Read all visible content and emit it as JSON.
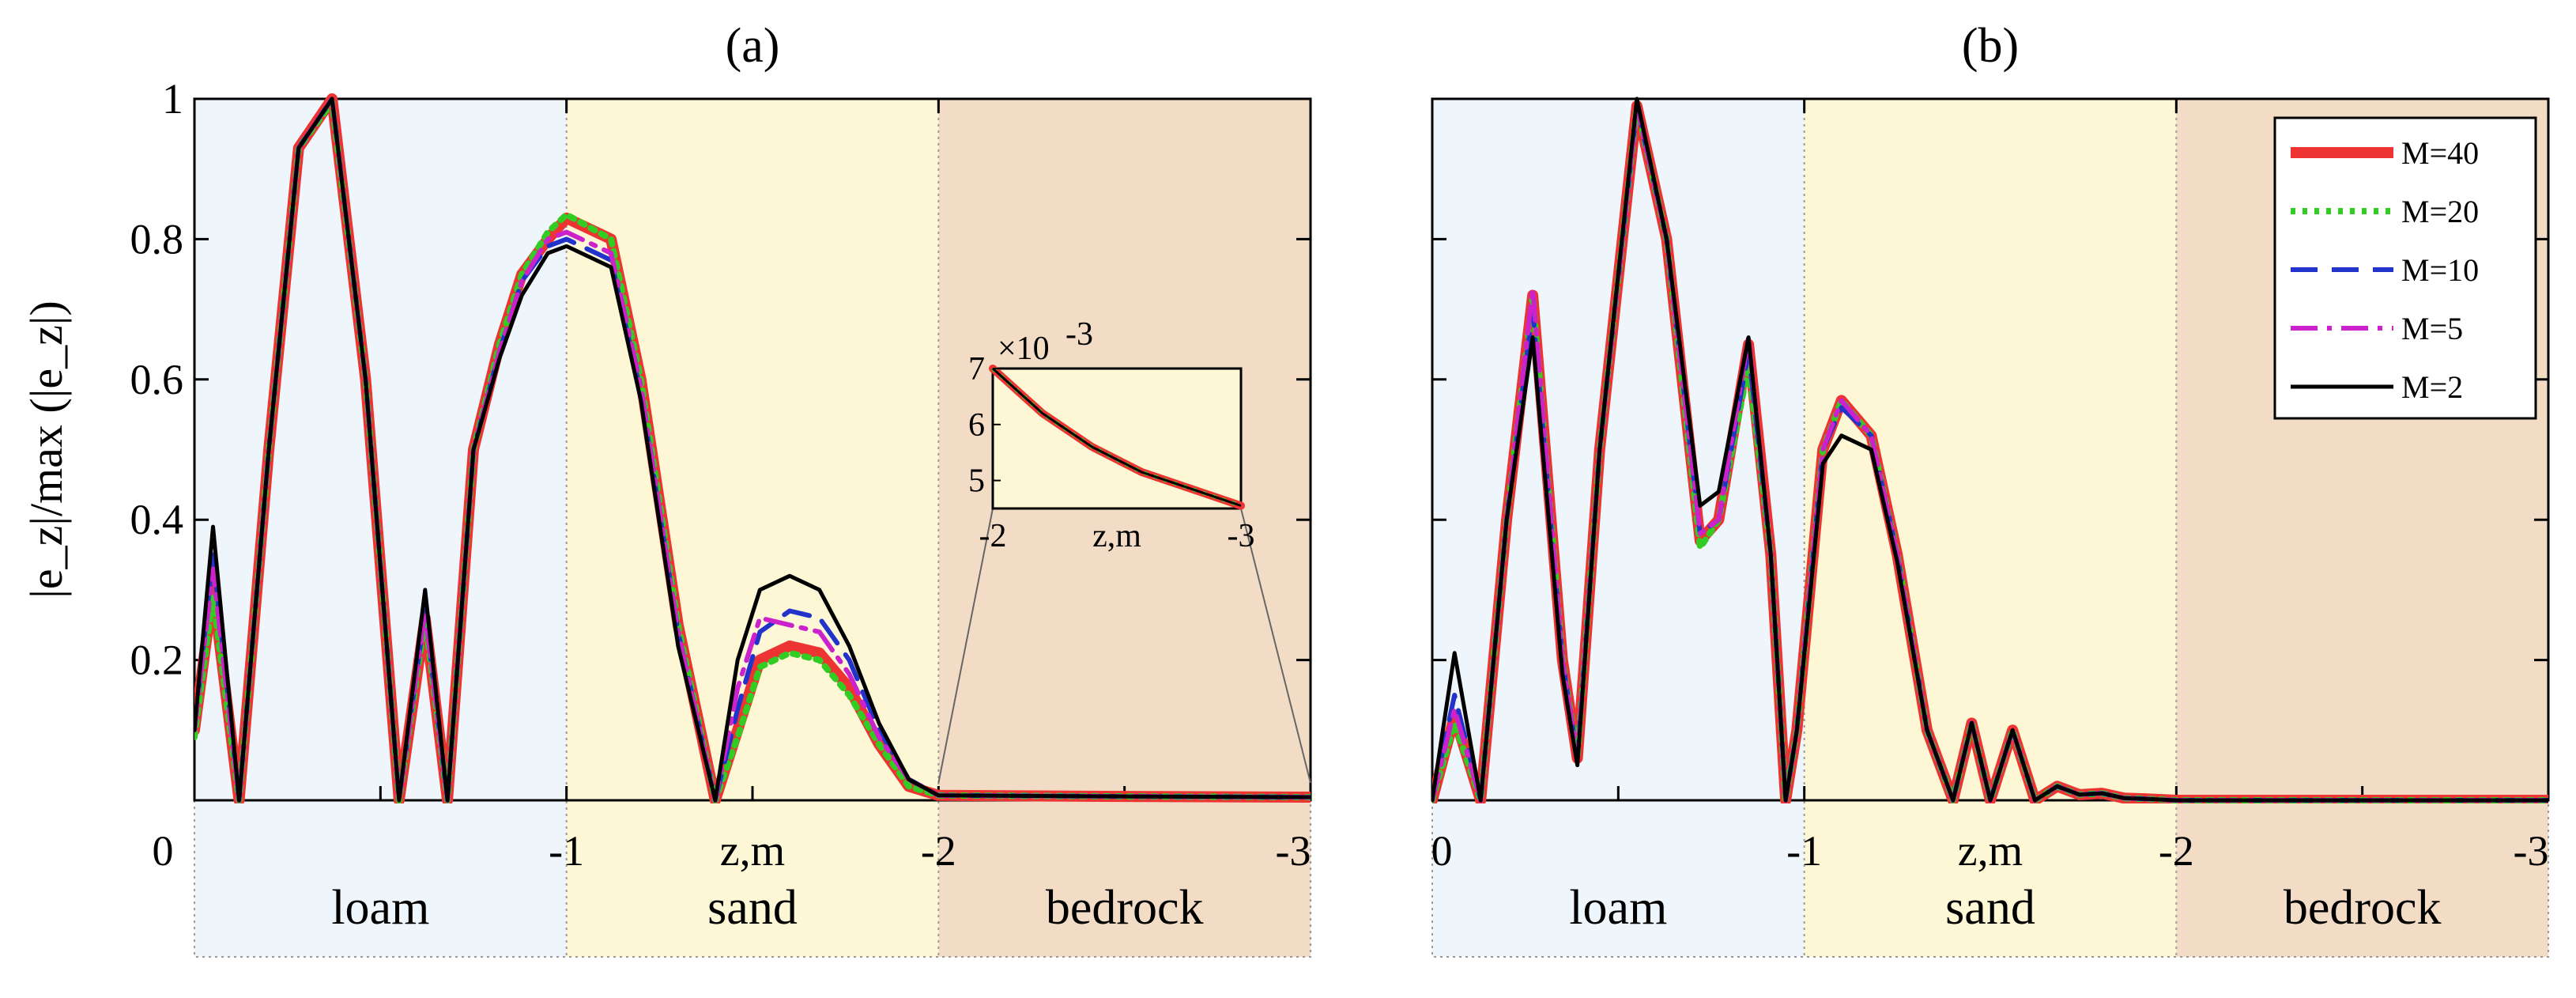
{
  "chart_data": [
    {
      "type": "line",
      "panel": "(a)",
      "title": "(a)",
      "xlabel": "z,m",
      "ylabel": "|e_z|/max (|e_z|)",
      "xlim": [
        0,
        -3
      ],
      "ylim": [
        0,
        1
      ],
      "grid": false,
      "x_ticks": [
        "0",
        "-1",
        "-2",
        "-3"
      ],
      "y_ticks": [
        "0.2",
        "0.4",
        "0.6",
        "0.8",
        "1"
      ],
      "layers": [
        {
          "name": "loam",
          "from": 0,
          "to": -1,
          "color": "#eef5fb"
        },
        {
          "name": "sand",
          "from": -1,
          "to": -2,
          "color": "#fdf7d6"
        },
        {
          "name": "bedrock",
          "from": -2,
          "to": -3,
          "color": "#f3dcc6"
        }
      ],
      "series": [
        {
          "name": "M=40",
          "color": "#ee3333",
          "style": "solid",
          "width": 14,
          "z": [
            0,
            -0.05,
            -0.12,
            -0.2,
            -0.28,
            -0.37,
            -0.46,
            -0.55,
            -0.62,
            -0.68,
            -0.75,
            -0.82,
            -0.88,
            -0.95,
            -1.0,
            -1.12,
            -1.2,
            -1.3,
            -1.4,
            -1.46,
            -1.52,
            -1.6,
            -1.68,
            -1.76,
            -1.84,
            -1.92,
            -2.0,
            -2.5,
            -3.0
          ],
          "y": [
            0.1,
            0.3,
            0.0,
            0.5,
            0.93,
            1.0,
            0.6,
            0.0,
            0.26,
            0.0,
            0.5,
            0.65,
            0.75,
            0.8,
            0.83,
            0.8,
            0.6,
            0.25,
            0.0,
            0.1,
            0.2,
            0.22,
            0.21,
            0.16,
            0.08,
            0.02,
            0.007,
            0.0055,
            0.0045
          ]
        },
        {
          "name": "M=20",
          "color": "#33cc22",
          "style": "dotted",
          "width": 8,
          "z": [
            0,
            -0.05,
            -0.12,
            -0.2,
            -0.28,
            -0.37,
            -0.46,
            -0.55,
            -0.62,
            -0.68,
            -0.75,
            -0.82,
            -0.88,
            -0.95,
            -1.0,
            -1.12,
            -1.2,
            -1.3,
            -1.4,
            -1.46,
            -1.52,
            -1.6,
            -1.68,
            -1.76,
            -1.84,
            -1.92,
            -2.0,
            -2.5,
            -3.0
          ],
          "y": [
            0.09,
            0.29,
            0.0,
            0.5,
            0.93,
            0.995,
            0.6,
            0.0,
            0.26,
            0.0,
            0.5,
            0.65,
            0.75,
            0.81,
            0.835,
            0.8,
            0.6,
            0.25,
            0.0,
            0.09,
            0.19,
            0.21,
            0.2,
            0.15,
            0.08,
            0.02,
            0.007,
            0.0055,
            0.0045
          ]
        },
        {
          "name": "M=10",
          "color": "#2233cc",
          "style": "dashed",
          "width": 6,
          "z": [
            0,
            -0.05,
            -0.12,
            -0.2,
            -0.28,
            -0.37,
            -0.46,
            -0.55,
            -0.62,
            -0.68,
            -0.75,
            -0.82,
            -0.88,
            -0.95,
            -1.0,
            -1.12,
            -1.2,
            -1.3,
            -1.4,
            -1.46,
            -1.52,
            -1.6,
            -1.68,
            -1.76,
            -1.84,
            -1.92,
            -2.0,
            -2.5,
            -3.0
          ],
          "y": [
            0.1,
            0.35,
            0.0,
            0.5,
            0.93,
            1.0,
            0.6,
            0.0,
            0.27,
            0.0,
            0.5,
            0.64,
            0.74,
            0.79,
            0.8,
            0.77,
            0.58,
            0.24,
            0.0,
            0.13,
            0.24,
            0.27,
            0.26,
            0.2,
            0.1,
            0.03,
            0.007,
            0.0055,
            0.0045
          ]
        },
        {
          "name": "M=5",
          "color": "#cc22cc",
          "style": "dashdot",
          "width": 6,
          "z": [
            0,
            -0.05,
            -0.12,
            -0.2,
            -0.28,
            -0.37,
            -0.46,
            -0.55,
            -0.62,
            -0.68,
            -0.75,
            -0.82,
            -0.88,
            -0.95,
            -1.0,
            -1.12,
            -1.2,
            -1.3,
            -1.4,
            -1.46,
            -1.52,
            -1.6,
            -1.68,
            -1.76,
            -1.84,
            -1.92,
            -2.0,
            -2.5,
            -3.0
          ],
          "y": [
            0.1,
            0.33,
            0.0,
            0.5,
            0.93,
            1.0,
            0.6,
            0.0,
            0.27,
            0.0,
            0.5,
            0.64,
            0.74,
            0.8,
            0.81,
            0.78,
            0.59,
            0.24,
            0.0,
            0.16,
            0.26,
            0.25,
            0.24,
            0.18,
            0.09,
            0.03,
            0.007,
            0.0055,
            0.0045
          ]
        },
        {
          "name": "M=2",
          "color": "#000000",
          "style": "solid",
          "width": 5,
          "z": [
            0,
            -0.05,
            -0.12,
            -0.2,
            -0.28,
            -0.37,
            -0.46,
            -0.55,
            -0.62,
            -0.68,
            -0.75,
            -0.82,
            -0.88,
            -0.95,
            -1.0,
            -1.12,
            -1.2,
            -1.3,
            -1.4,
            -1.46,
            -1.52,
            -1.6,
            -1.68,
            -1.76,
            -1.84,
            -1.92,
            -2.0,
            -2.5,
            -3.0
          ],
          "y": [
            0.1,
            0.39,
            0.0,
            0.5,
            0.93,
            1.0,
            0.6,
            0.0,
            0.3,
            0.0,
            0.5,
            0.63,
            0.72,
            0.78,
            0.79,
            0.76,
            0.57,
            0.22,
            0.0,
            0.2,
            0.3,
            0.32,
            0.3,
            0.22,
            0.11,
            0.03,
            0.007,
            0.0055,
            0.0045
          ]
        }
      ],
      "inset": {
        "xlim": [
          -2,
          -3
        ],
        "ylim": [
          4.5,
          7
        ],
        "x_ticks": [
          "-2",
          "-3"
        ],
        "y_ticks": [
          "5",
          "6",
          "7"
        ],
        "xlabel": "z,m",
        "exponent": "×10",
        "exponent_power": "-3",
        "z": [
          -2.0,
          -2.2,
          -2.4,
          -2.6,
          -2.8,
          -3.0
        ],
        "y": [
          7.0,
          6.2,
          5.6,
          5.15,
          4.85,
          4.55
        ]
      }
    },
    {
      "type": "line",
      "panel": "(b)",
      "title": "(b)",
      "xlabel": "z,m",
      "xlim": [
        0,
        -3
      ],
      "ylim": [
        0,
        1
      ],
      "grid": false,
      "x_ticks": [
        "0",
        "-1",
        "-2",
        "-3"
      ],
      "legend_position": "top-right",
      "layers": [
        {
          "name": "loam",
          "from": 0,
          "to": -1,
          "color": "#eef5fb"
        },
        {
          "name": "sand",
          "from": -1,
          "to": -2,
          "color": "#fdf7d6"
        },
        {
          "name": "bedrock",
          "from": -2,
          "to": -3,
          "color": "#f3dcc6"
        }
      ],
      "series": [
        {
          "name": "M=40",
          "color": "#ee3333",
          "style": "solid",
          "width": 14,
          "z": [
            0,
            -0.06,
            -0.13,
            -0.2,
            -0.27,
            -0.35,
            -0.39,
            -0.45,
            -0.55,
            -0.63,
            -0.72,
            -0.77,
            -0.85,
            -0.91,
            -0.95,
            -0.98,
            -1.05,
            -1.1,
            -1.18,
            -1.25,
            -1.33,
            -1.4,
            -1.45,
            -1.5,
            -1.56,
            -1.62,
            -1.68,
            -1.74,
            -1.8,
            -1.86,
            -1.92,
            -2.0,
            -2.5,
            -3.0
          ],
          "y": [
            0.0,
            0.12,
            0.0,
            0.4,
            0.72,
            0.2,
            0.06,
            0.5,
            0.99,
            0.8,
            0.37,
            0.4,
            0.65,
            0.35,
            0.0,
            0.1,
            0.5,
            0.57,
            0.52,
            0.35,
            0.1,
            0.0,
            0.11,
            0.0,
            0.1,
            0.0,
            0.02,
            0.008,
            0.01,
            0.003,
            0.002,
            0.0,
            0.0,
            0.0
          ]
        },
        {
          "name": "M=20",
          "color": "#33cc22",
          "style": "dotted",
          "width": 8,
          "z": [
            0,
            -0.06,
            -0.13,
            -0.2,
            -0.27,
            -0.35,
            -0.39,
            -0.45,
            -0.55,
            -0.63,
            -0.72,
            -0.77,
            -0.85,
            -0.91,
            -0.95,
            -0.98,
            -1.05,
            -1.1,
            -1.18,
            -1.25,
            -1.33,
            -1.4,
            -1.45,
            -1.5,
            -1.56,
            -1.62,
            -1.68,
            -1.74,
            -1.8,
            -1.86,
            -1.92,
            -2.0,
            -2.5,
            -3.0
          ],
          "y": [
            0.0,
            0.11,
            0.0,
            0.4,
            0.72,
            0.2,
            0.06,
            0.5,
            0.99,
            0.8,
            0.36,
            0.4,
            0.62,
            0.35,
            0.0,
            0.1,
            0.5,
            0.57,
            0.52,
            0.35,
            0.1,
            0.0,
            0.11,
            0.0,
            0.1,
            0.0,
            0.02,
            0.008,
            0.01,
            0.003,
            0.002,
            0.0,
            0.0,
            0.0
          ]
        },
        {
          "name": "M=10",
          "color": "#2233cc",
          "style": "dashed",
          "width": 6,
          "z": [
            0,
            -0.06,
            -0.13,
            -0.2,
            -0.27,
            -0.35,
            -0.39,
            -0.45,
            -0.55,
            -0.63,
            -0.72,
            -0.77,
            -0.85,
            -0.91,
            -0.95,
            -0.98,
            -1.05,
            -1.1,
            -1.18,
            -1.25,
            -1.33,
            -1.4,
            -1.45,
            -1.5,
            -1.56,
            -1.62,
            -1.68,
            -1.74,
            -1.8,
            -1.86,
            -1.92,
            -2.0,
            -2.5,
            -3.0
          ],
          "y": [
            0.0,
            0.15,
            0.0,
            0.4,
            0.7,
            0.2,
            0.06,
            0.5,
            0.99,
            0.8,
            0.38,
            0.4,
            0.64,
            0.35,
            0.0,
            0.1,
            0.5,
            0.56,
            0.52,
            0.35,
            0.1,
            0.0,
            0.11,
            0.0,
            0.1,
            0.0,
            0.02,
            0.008,
            0.01,
            0.003,
            0.002,
            0.0,
            0.0,
            0.0
          ]
        },
        {
          "name": "M=5",
          "color": "#cc22cc",
          "style": "dashdot",
          "width": 6,
          "z": [
            0,
            -0.06,
            -0.13,
            -0.2,
            -0.27,
            -0.35,
            -0.39,
            -0.45,
            -0.55,
            -0.63,
            -0.72,
            -0.77,
            -0.85,
            -0.91,
            -0.95,
            -0.98,
            -1.05,
            -1.1,
            -1.18,
            -1.25,
            -1.33,
            -1.4,
            -1.45,
            -1.5,
            -1.56,
            -1.62,
            -1.68,
            -1.74,
            -1.8,
            -1.86,
            -1.92,
            -2.0,
            -2.5,
            -3.0
          ],
          "y": [
            0.0,
            0.13,
            0.0,
            0.4,
            0.73,
            0.2,
            0.06,
            0.5,
            0.99,
            0.8,
            0.38,
            0.4,
            0.66,
            0.35,
            0.0,
            0.1,
            0.5,
            0.57,
            0.52,
            0.35,
            0.1,
            0.0,
            0.11,
            0.0,
            0.1,
            0.0,
            0.02,
            0.008,
            0.01,
            0.003,
            0.002,
            0.0,
            0.0,
            0.0
          ]
        },
        {
          "name": "M=2",
          "color": "#000000",
          "style": "solid",
          "width": 5,
          "z": [
            0,
            -0.06,
            -0.13,
            -0.2,
            -0.27,
            -0.35,
            -0.39,
            -0.45,
            -0.55,
            -0.63,
            -0.72,
            -0.77,
            -0.85,
            -0.91,
            -0.95,
            -0.98,
            -1.05,
            -1.1,
            -1.18,
            -1.25,
            -1.33,
            -1.4,
            -1.45,
            -1.5,
            -1.56,
            -1.62,
            -1.68,
            -1.74,
            -1.8,
            -1.86,
            -1.92,
            -2.0,
            -2.5,
            -3.0
          ],
          "y": [
            0.0,
            0.21,
            0.0,
            0.4,
            0.66,
            0.18,
            0.05,
            0.5,
            1.0,
            0.8,
            0.42,
            0.44,
            0.66,
            0.35,
            0.0,
            0.1,
            0.48,
            0.52,
            0.5,
            0.34,
            0.1,
            0.0,
            0.11,
            0.0,
            0.1,
            0.0,
            0.02,
            0.008,
            0.01,
            0.003,
            0.002,
            0.0,
            0.0,
            0.0
          ]
        }
      ]
    }
  ]
}
